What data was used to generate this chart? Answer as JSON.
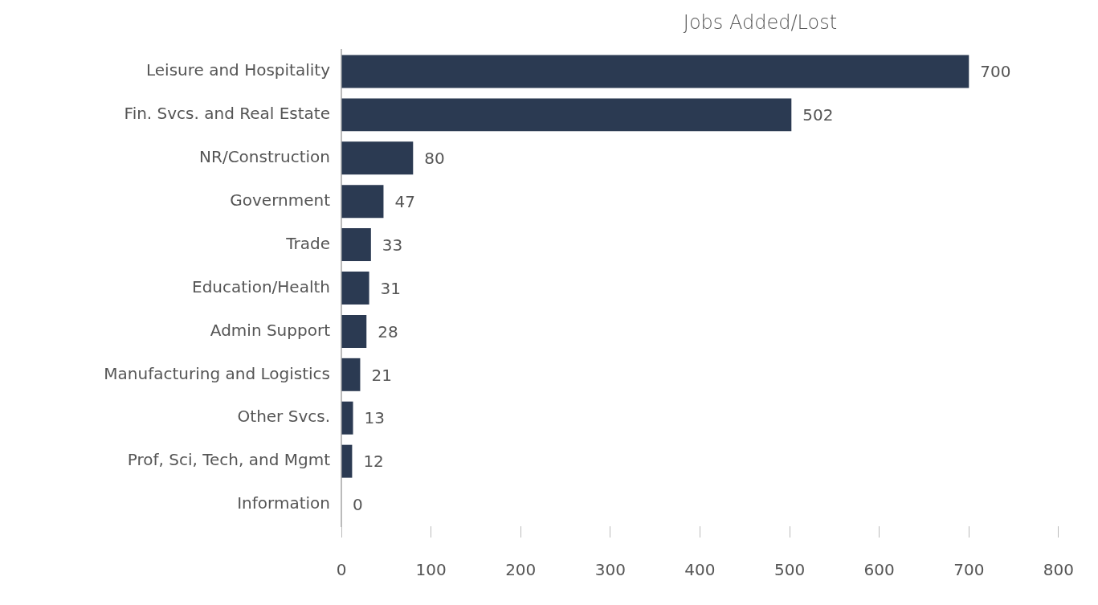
{
  "chart_data": {
    "type": "bar",
    "orientation": "horizontal",
    "title": "Jobs Added/Lost",
    "categories": [
      "Leisure and Hospitality",
      "Fin. Svcs. and Real Estate",
      "NR/Construction",
      "Government",
      "Trade",
      "Education/Health",
      "Admin Support",
      "Manufacturing and Logistics",
      "Other Svcs.",
      "Prof, Sci, Tech, and Mgmt",
      "Information"
    ],
    "values": [
      700,
      502,
      80,
      47,
      33,
      31,
      28,
      21,
      13,
      12,
      0
    ],
    "color": "#2b3a52",
    "xlim": [
      0,
      800
    ],
    "xticks": [
      0,
      100,
      200,
      300,
      400,
      500,
      600,
      700,
      800
    ],
    "data_labels": true,
    "grid": false,
    "legend": false
  }
}
